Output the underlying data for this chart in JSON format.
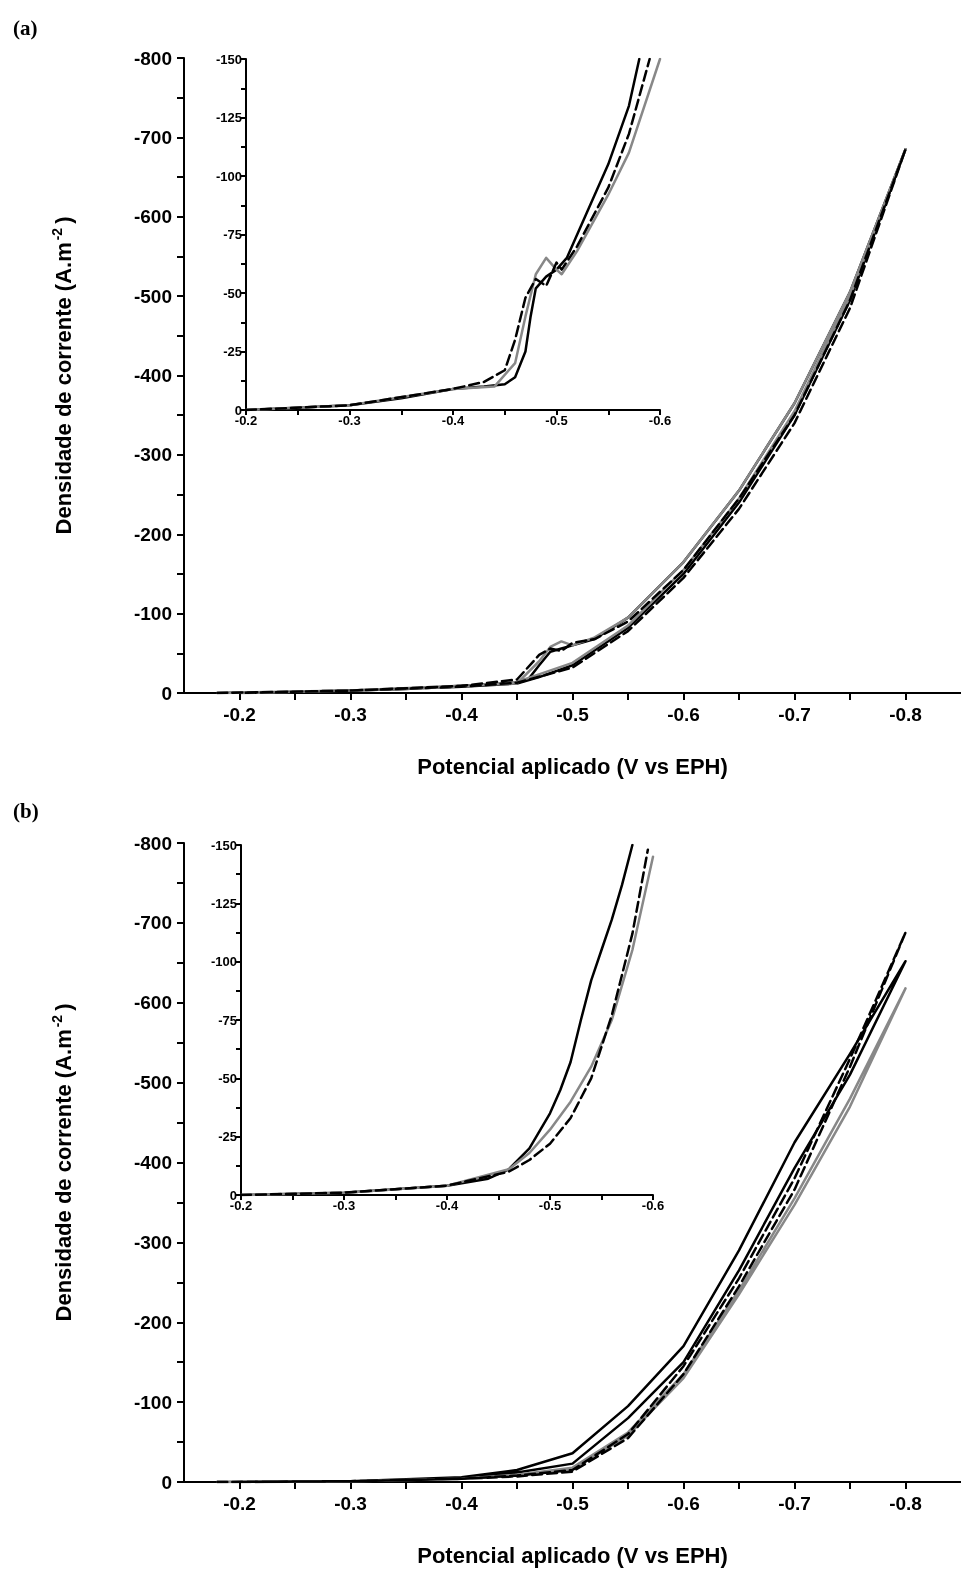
{
  "chart_data": [
    {
      "type": "line",
      "title": "(a)",
      "xlabel": "Potencial aplicado (V vs EPH)",
      "ylabel": "Densidade de corrente (A.m$^{-2}$)",
      "marker": "none",
      "grid": false,
      "xlim": [
        -0.15,
        -0.85
      ],
      "xticks": [
        -0.2,
        {
          "value": -0.25,
          "label": null
        },
        -0.3,
        {
          "value": -0.35,
          "label": null
        },
        -0.4,
        {
          "value": -0.45,
          "label": null
        },
        -0.5,
        {
          "value": -0.55,
          "label": null
        },
        -0.6,
        {
          "value": -0.65,
          "label": null
        },
        -0.7,
        {
          "value": -0.75,
          "label": null
        },
        -0.8
      ],
      "ylim": [
        0,
        -800
      ],
      "yticks": [
        0,
        {
          "value": -50,
          "label": null
        },
        -100,
        {
          "value": -150,
          "label": null
        },
        -200,
        {
          "value": -250,
          "label": null
        },
        -300,
        {
          "value": -350,
          "label": null
        },
        -400,
        {
          "value": -450,
          "label": null
        },
        -500,
        {
          "value": -550,
          "label": null
        },
        -600,
        {
          "value": -650,
          "label": null
        },
        -700,
        {
          "value": -750,
          "label": null
        },
        -800
      ],
      "series": [
        {
          "color": "#000000",
          "line_style": "solid",
          "x": [
            -0.18,
            -0.25,
            -0.3,
            -0.35,
            -0.4,
            -0.43,
            -0.45,
            -0.46,
            -0.47,
            -0.48,
            -0.49,
            -0.5,
            -0.52,
            -0.55,
            -0.6,
            -0.65,
            -0.7,
            -0.75,
            -0.8,
            -0.75,
            -0.7,
            -0.65,
            -0.6,
            -0.55,
            -0.5,
            -0.47,
            -0.45,
            -0.4,
            -0.3,
            -0.2
          ],
          "values": [
            0,
            -1,
            -3,
            -5,
            -9,
            -11,
            -14,
            -17,
            -35,
            -52,
            -56,
            -60,
            -68,
            -95,
            -165,
            -255,
            -365,
            -505,
            -685,
            -495,
            -350,
            -240,
            -150,
            -82,
            -35,
            -20,
            -12,
            -8,
            -3,
            0
          ]
        },
        {
          "color": "#888888",
          "line_style": "solid",
          "x": [
            -0.18,
            -0.3,
            -0.4,
            -0.45,
            -0.47,
            -0.48,
            -0.49,
            -0.5,
            -0.52,
            -0.55,
            -0.6,
            -0.65,
            -0.7,
            -0.75,
            -0.8,
            -0.75,
            -0.7,
            -0.65,
            -0.6,
            -0.55,
            -0.5,
            -0.45,
            -0.4,
            -0.3,
            -0.2
          ],
          "values": [
            0,
            -3,
            -9,
            -12,
            -40,
            -58,
            -65,
            -60,
            -70,
            -95,
            -165,
            -255,
            -365,
            -505,
            -685,
            -500,
            -355,
            -245,
            -155,
            -85,
            -38,
            -14,
            -8,
            -3,
            0
          ]
        },
        {
          "color": "#000000",
          "line_style": "dashed",
          "x": [
            -0.18,
            -0.3,
            -0.4,
            -0.45,
            -0.47,
            -0.48,
            -0.49,
            -0.5,
            -0.52,
            -0.55,
            -0.6,
            -0.65,
            -0.7,
            -0.75,
            -0.8,
            -0.75,
            -0.7,
            -0.65,
            -0.6,
            -0.55,
            -0.5,
            -0.45,
            -0.4,
            -0.3,
            -0.2
          ],
          "values": [
            0,
            -3,
            -9,
            -17,
            -48,
            -56,
            -53,
            -63,
            -68,
            -90,
            -155,
            -245,
            -350,
            -495,
            -685,
            -485,
            -340,
            -232,
            -145,
            -78,
            -32,
            -13,
            -8,
            -3,
            0
          ]
        }
      ]
    },
    {
      "type": "line",
      "marker": "none",
      "grid": false,
      "xlim": [
        -0.2,
        -0.6
      ],
      "xticks": [
        -0.2,
        {
          "value": -0.25,
          "label": null
        },
        -0.3,
        {
          "value": -0.35,
          "label": null
        },
        -0.4,
        {
          "value": -0.45,
          "label": null
        },
        -0.5,
        {
          "value": -0.55,
          "label": null
        },
        -0.6
      ],
      "ylim": [
        0,
        -150
      ],
      "yticks": [
        0,
        {
          "value": -12.5,
          "label": null
        },
        -25,
        {
          "value": -37.5,
          "label": null
        },
        -50,
        {
          "value": -62.5,
          "label": null
        },
        -75,
        {
          "value": -87.5,
          "label": null
        },
        -100,
        {
          "value": -112.5,
          "label": null
        },
        -125,
        {
          "value": -137.5,
          "label": null
        },
        -150
      ],
      "series": [
        {
          "color": "#000000",
          "line_style": "solid",
          "x": [
            -0.2,
            -0.3,
            -0.35,
            -0.4,
            -0.43,
            -0.45,
            -0.46,
            -0.47,
            -0.475,
            -0.48,
            -0.49,
            -0.5,
            -0.51,
            -0.53,
            -0.55,
            -0.57,
            -0.58
          ],
          "values": [
            0,
            -2,
            -5,
            -9,
            -10,
            -11,
            -14,
            -25,
            -40,
            -52,
            -57,
            -60,
            -65,
            -85,
            -105,
            -130,
            -150
          ]
        },
        {
          "color": "#888888",
          "line_style": "solid",
          "x": [
            -0.2,
            -0.3,
            -0.4,
            -0.44,
            -0.46,
            -0.47,
            -0.48,
            -0.49,
            -0.5,
            -0.505,
            -0.52,
            -0.55,
            -0.57,
            -0.6
          ],
          "values": [
            0,
            -2,
            -9,
            -10,
            -20,
            -40,
            -58,
            -65,
            -60,
            -58,
            -68,
            -92,
            -110,
            -150
          ]
        },
        {
          "color": "#000000",
          "line_style": "dashed",
          "x": [
            -0.2,
            -0.3,
            -0.4,
            -0.43,
            -0.45,
            -0.46,
            -0.47,
            -0.48,
            -0.49,
            -0.5,
            -0.505,
            -0.52,
            -0.55,
            -0.57,
            -0.59
          ],
          "values": [
            0,
            -2,
            -9,
            -12,
            -17,
            -30,
            -48,
            -56,
            -53,
            -63,
            -60,
            -70,
            -95,
            -118,
            -150
          ]
        }
      ]
    },
    {
      "type": "line",
      "title": "(b)",
      "xlabel": "Potencial aplicado (V vs EPH)",
      "ylabel": "Densidade de corrente (A.m$^{-2}$)",
      "marker": "none",
      "grid": false,
      "xlim": [
        -0.15,
        -0.85
      ],
      "xticks": [
        -0.2,
        {
          "value": -0.25,
          "label": null
        },
        -0.3,
        {
          "value": -0.35,
          "label": null
        },
        -0.4,
        {
          "value": -0.45,
          "label": null
        },
        -0.5,
        {
          "value": -0.55,
          "label": null
        },
        -0.6,
        {
          "value": -0.65,
          "label": null
        },
        -0.7,
        {
          "value": -0.75,
          "label": null
        },
        -0.8
      ],
      "ylim": [
        0,
        -800
      ],
      "yticks": [
        0,
        {
          "value": -50,
          "label": null
        },
        -100,
        {
          "value": -150,
          "label": null
        },
        -200,
        {
          "value": -250,
          "label": null
        },
        -300,
        {
          "value": -350,
          "label": null
        },
        -400,
        {
          "value": -450,
          "label": null
        },
        -500,
        {
          "value": -550,
          "label": null
        },
        -600,
        {
          "value": -650,
          "label": null
        },
        -700,
        {
          "value": -750,
          "label": null
        },
        -800
      ],
      "series": [
        {
          "color": "#000000",
          "line_style": "solid",
          "x": [
            -0.18,
            -0.3,
            -0.4,
            -0.45,
            -0.5,
            -0.55,
            -0.6,
            -0.65,
            -0.7,
            -0.75,
            -0.8,
            -0.75,
            -0.7,
            -0.65,
            -0.6,
            -0.55,
            -0.5,
            -0.45,
            -0.4,
            -0.3,
            -0.2
          ],
          "values": [
            0,
            -1,
            -5,
            -12,
            -23,
            -80,
            -150,
            -265,
            -393,
            -510,
            -652,
            -536,
            -425,
            -290,
            -170,
            -95,
            -36,
            -15,
            -6,
            -1,
            0
          ]
        },
        {
          "color": "#888888",
          "line_style": "solid",
          "x": [
            -0.18,
            -0.3,
            -0.4,
            -0.45,
            -0.5,
            -0.55,
            -0.6,
            -0.65,
            -0.7,
            -0.75,
            -0.8,
            -0.75,
            -0.7,
            -0.65,
            -0.6,
            -0.55,
            -0.5,
            -0.45,
            -0.4,
            -0.3,
            -0.2
          ],
          "values": [
            0,
            -1,
            -4,
            -8,
            -16,
            -58,
            -130,
            -235,
            -347,
            -470,
            -618,
            -480,
            -355,
            -240,
            -135,
            -62,
            -18,
            -9,
            -4,
            -1,
            0
          ]
        },
        {
          "color": "#000000",
          "line_style": "dashed",
          "x": [
            -0.18,
            -0.3,
            -0.4,
            -0.45,
            -0.5,
            -0.55,
            -0.6,
            -0.65,
            -0.7,
            -0.75,
            -0.8,
            -0.75,
            -0.7,
            -0.65,
            -0.6,
            -0.55,
            -0.5,
            -0.45,
            -0.4,
            -0.3,
            -0.2
          ],
          "values": [
            0,
            -1,
            -4,
            -7,
            -13,
            -55,
            -135,
            -245,
            -366,
            -520,
            -688,
            -530,
            -380,
            -255,
            -145,
            -60,
            -15,
            -8,
            -4,
            -1,
            0
          ]
        }
      ]
    },
    {
      "type": "line",
      "marker": "none",
      "grid": false,
      "xlim": [
        -0.2,
        -0.6
      ],
      "xticks": [
        -0.2,
        {
          "value": -0.25,
          "label": null
        },
        -0.3,
        {
          "value": -0.35,
          "label": null
        },
        -0.4,
        {
          "value": -0.45,
          "label": null
        },
        -0.5,
        {
          "value": -0.55,
          "label": null
        },
        -0.6
      ],
      "ylim": [
        0,
        -150
      ],
      "yticks": [
        0,
        {
          "value": -12.5,
          "label": null
        },
        -25,
        {
          "value": -37.5,
          "label": null
        },
        -50,
        {
          "value": -62.5,
          "label": null
        },
        -75,
        {
          "value": -87.5,
          "label": null
        },
        -100,
        {
          "value": -112.5,
          "label": null
        },
        -125,
        {
          "value": -137.5,
          "label": null
        },
        -150
      ],
      "series": [
        {
          "color": "#000000",
          "line_style": "solid",
          "x": [
            -0.2,
            -0.3,
            -0.4,
            -0.44,
            -0.46,
            -0.48,
            -0.5,
            -0.51,
            -0.52,
            -0.53,
            -0.54,
            -0.55,
            -0.56,
            -0.57,
            -0.58
          ],
          "values": [
            0,
            -1,
            -4,
            -7,
            -11,
            -20,
            -35,
            -45,
            -57,
            -75,
            -92,
            -105,
            -118,
            -133,
            -150
          ]
        },
        {
          "color": "#888888",
          "line_style": "solid",
          "x": [
            -0.2,
            -0.3,
            -0.4,
            -0.46,
            -0.48,
            -0.5,
            -0.52,
            -0.54,
            -0.56,
            -0.58,
            -0.6
          ],
          "values": [
            0,
            -1,
            -4,
            -11,
            -18,
            -28,
            -40,
            -55,
            -75,
            -105,
            -145
          ]
        },
        {
          "color": "#000000",
          "line_style": "dashed",
          "x": [
            -0.2,
            -0.3,
            -0.4,
            -0.46,
            -0.48,
            -0.5,
            -0.52,
            -0.54,
            -0.56,
            -0.58,
            -0.595
          ],
          "values": [
            0,
            -1,
            -4,
            -10,
            -15,
            -22,
            -33,
            -50,
            -77,
            -112,
            -148
          ]
        }
      ]
    }
  ]
}
